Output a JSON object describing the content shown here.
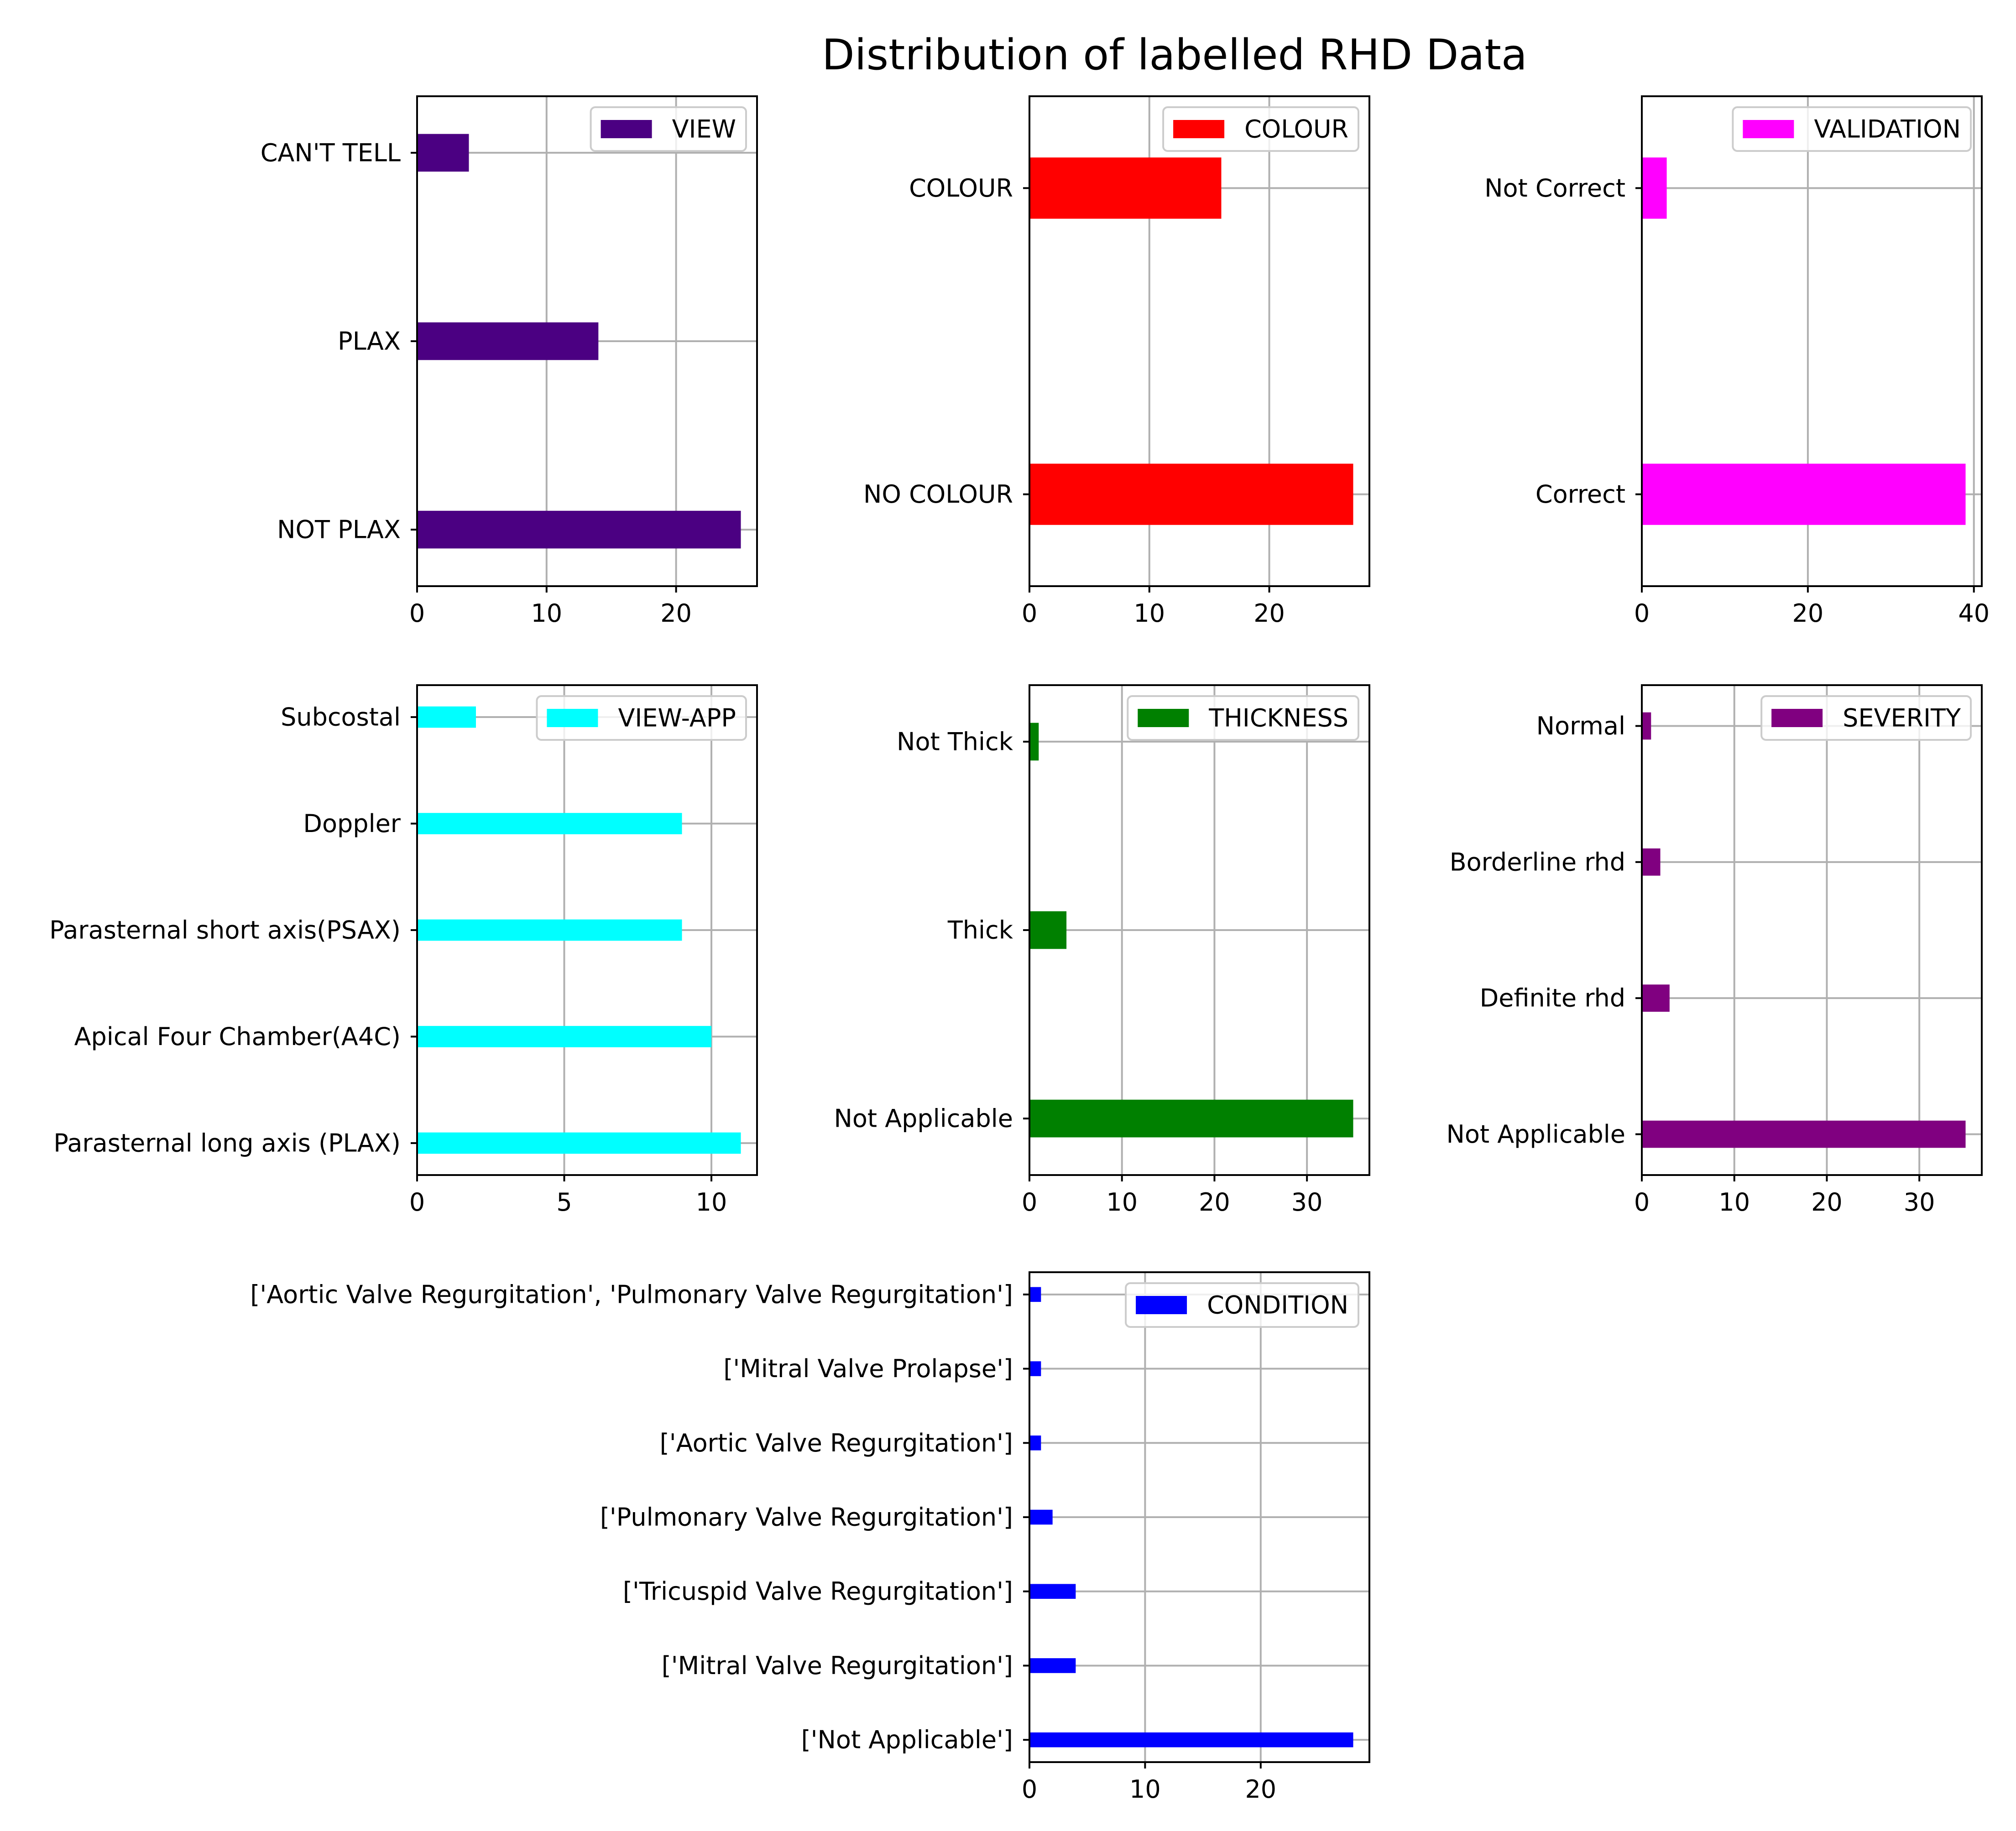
{
  "figure": {
    "title": "Distribution of labelled RHD Data"
  },
  "chart_data": [
    {
      "type": "bar",
      "orientation": "horizontal",
      "legend": "VIEW",
      "legend_position": "upper right",
      "color": "#4b0082",
      "categories": [
        "NOT PLAX",
        "PLAX",
        "CAN'T TELL"
      ],
      "values": [
        25,
        14,
        4
      ],
      "xlim": [
        0,
        26.25
      ],
      "xticks": [
        0,
        10,
        20
      ],
      "grid": true
    },
    {
      "type": "bar",
      "orientation": "horizontal",
      "legend": "COLOUR",
      "legend_position": "upper right",
      "color": "#ff0000",
      "categories": [
        "NO COLOUR",
        "COLOUR"
      ],
      "values": [
        27,
        16
      ],
      "xlim": [
        0,
        28.35
      ],
      "xticks": [
        0,
        10,
        20
      ],
      "grid": true
    },
    {
      "type": "bar",
      "orientation": "horizontal",
      "legend": "VALIDATION",
      "legend_position": "upper right",
      "color": "#ff00ff",
      "categories": [
        "Correct",
        "Not Correct"
      ],
      "values": [
        39,
        3
      ],
      "xlim": [
        0,
        40.95
      ],
      "xticks": [
        0,
        20,
        40
      ],
      "grid": true
    },
    {
      "type": "bar",
      "orientation": "horizontal",
      "legend": "VIEW-APP",
      "legend_position": "upper right",
      "color": "#00ffff",
      "categories": [
        "Parasternal long axis (PLAX)",
        "Apical Four Chamber(A4C)",
        "Parasternal short axis(PSAX)",
        "Doppler",
        "Subcostal"
      ],
      "values": [
        11,
        10,
        9,
        9,
        2
      ],
      "xlim": [
        0,
        11.55
      ],
      "xticks": [
        0,
        5,
        10
      ],
      "grid": true
    },
    {
      "type": "bar",
      "orientation": "horizontal",
      "legend": "THICKNESS",
      "legend_position": "upper right",
      "color": "#008000",
      "categories": [
        "Not Applicable",
        "Thick",
        "Not Thick"
      ],
      "values": [
        35,
        4,
        1
      ],
      "xlim": [
        0,
        36.75
      ],
      "xticks": [
        0,
        10,
        20,
        30
      ],
      "grid": true
    },
    {
      "type": "bar",
      "orientation": "horizontal",
      "legend": "SEVERITY",
      "legend_position": "upper right",
      "color": "#800080",
      "categories": [
        "Not Applicable",
        "Definite rhd",
        "Borderline rhd",
        "Normal"
      ],
      "values": [
        35,
        3,
        2,
        1
      ],
      "xlim": [
        0,
        36.75
      ],
      "xticks": [
        0,
        10,
        20,
        30
      ],
      "grid": true
    },
    {
      "type": "bar",
      "orientation": "horizontal",
      "legend": "CONDITION",
      "legend_position": "upper right",
      "color": "#0000ff",
      "categories": [
        "['Not Applicable']",
        "['Mitral Valve Regurgitation']",
        "['Tricuspid Valve Regurgitation']",
        "['Pulmonary Valve Regurgitation']",
        "['Aortic Valve Regurgitation']",
        "['Mitral Valve Prolapse']",
        "['Aortic Valve Regurgitation', 'Pulmonary Valve Regurgitation']"
      ],
      "values": [
        28,
        4,
        4,
        2,
        1,
        1,
        1
      ],
      "xlim": [
        0,
        29.4
      ],
      "xticks": [
        0,
        10,
        20
      ],
      "grid": true
    }
  ]
}
